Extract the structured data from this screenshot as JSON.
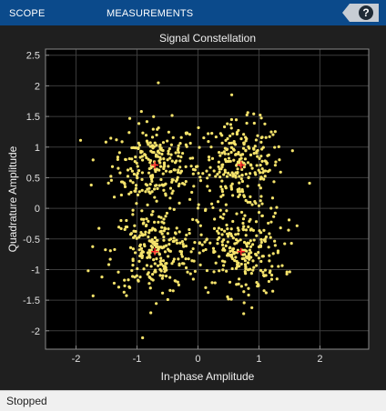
{
  "toolstrip": {
    "tabs": [
      {
        "label": "SCOPE"
      },
      {
        "label": "MEASUREMENTS"
      }
    ],
    "help_label": "?",
    "background": "#0b4a8b"
  },
  "chart_data": {
    "type": "scatter",
    "title": "Signal Constellation",
    "xlabel": "In-phase Amplitude",
    "ylabel": "Quadrature Amplitude",
    "xlim": [
      -2.5,
      2.8
    ],
    "ylim": [
      -2.3,
      2.6
    ],
    "xticks": [
      -2,
      -1,
      0,
      1,
      2
    ],
    "yticks": [
      -2,
      -1.5,
      -1,
      -0.5,
      0,
      0.5,
      1,
      1.5,
      2,
      2.5
    ],
    "grid": true,
    "point_color": "#f5e36b",
    "reference_color": "#ff2a2a",
    "reference_points": [
      {
        "x": -0.707,
        "y": 0.707
      },
      {
        "x": 0.707,
        "y": 0.707
      },
      {
        "x": -0.707,
        "y": -0.707
      },
      {
        "x": 0.707,
        "y": -0.707
      }
    ],
    "noise_sigma": 0.35,
    "samples_per_symbol_cluster": 250,
    "outliers": [
      {
        "x": -0.65,
        "y": 2.05
      },
      {
        "x": -1.72,
        "y": -1.43
      },
      {
        "x": -1.75,
        "y": 0.38
      },
      {
        "x": 1.83,
        "y": 0.41
      },
      {
        "x": 0.75,
        "y": -1.72
      },
      {
        "x": -1.8,
        "y": -1.02
      }
    ]
  },
  "status": {
    "text": "Stopped"
  }
}
